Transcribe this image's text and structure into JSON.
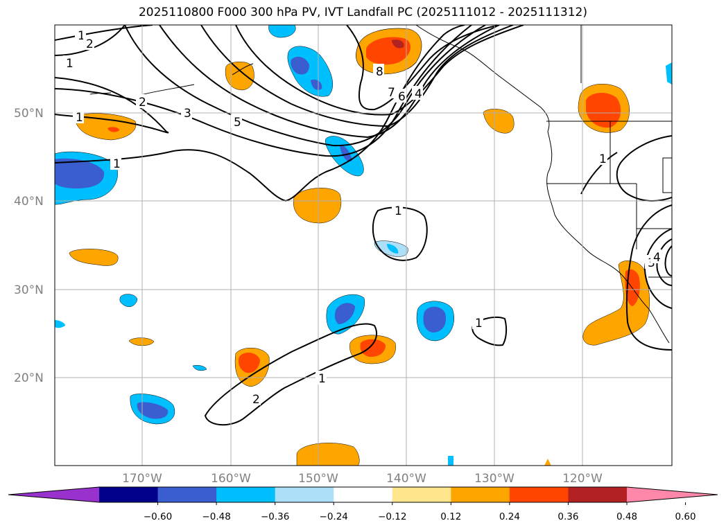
{
  "title": "2025110800 F000 300 hPa PV, IVT Landfall PC (2025111012 - 2025111312)",
  "map": {
    "lat_labels": [
      "50°N",
      "40°N",
      "30°N",
      "20°N"
    ],
    "lon_labels": [
      "170°W",
      "160°W",
      "150°W",
      "140°W",
      "130°W",
      "120°W"
    ],
    "contour_labels": [
      "1",
      "2",
      "3",
      "5",
      "6",
      "7",
      "4",
      "1",
      "1",
      "1",
      "1",
      "1",
      "1",
      "2",
      "3",
      "4",
      "1",
      "2",
      "8"
    ]
  },
  "colorbar": {
    "ticks": [
      "−0.60",
      "−0.48",
      "−0.36",
      "−0.24",
      "−0.12",
      "0.12",
      "0.24",
      "0.36",
      "0.48",
      "0.60"
    ],
    "colors": [
      "#9932CC",
      "#00008B",
      "#3A5ED0",
      "#00BFFF",
      "#ADE0F8",
      "#FFFFFF",
      "#FFE68C",
      "#FFA500",
      "#FF4500",
      "#B22222",
      "#FF88AA"
    ]
  }
}
